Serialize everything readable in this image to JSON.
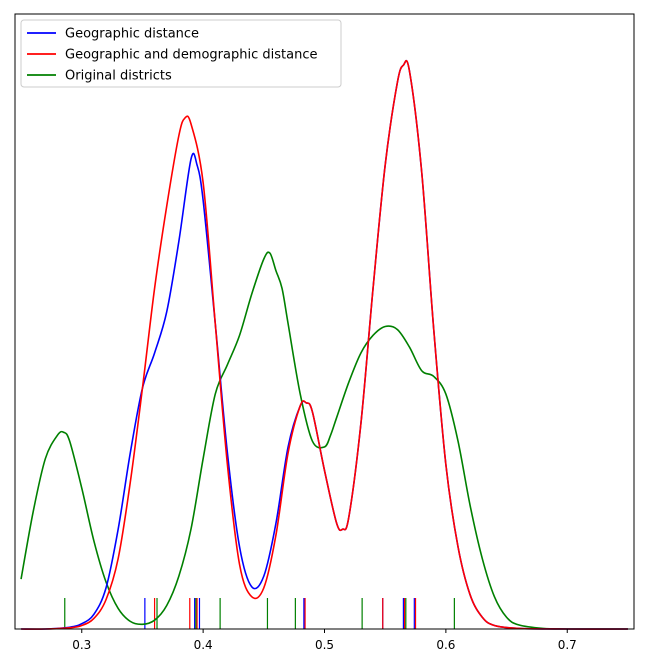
{
  "chart_data": {
    "type": "line",
    "title": "",
    "xlabel": "",
    "ylabel": "",
    "xlim": [
      0.245,
      0.755
    ],
    "ylim": [
      0,
      1.0
    ],
    "grid": false,
    "legend_position": "top-left",
    "x_ticks": [
      0.3,
      0.4,
      0.5,
      0.6,
      0.7
    ],
    "x_tick_labels": [
      "0.3",
      "0.4",
      "0.5",
      "0.6",
      "0.7"
    ],
    "y_ticks_visible": false,
    "series": [
      {
        "name": "Geographic distance",
        "color": "#0000ff",
        "x": [
          0.25,
          0.27,
          0.29,
          0.3,
          0.31,
          0.32,
          0.33,
          0.34,
          0.35,
          0.36,
          0.37,
          0.38,
          0.39,
          0.395,
          0.4,
          0.41,
          0.42,
          0.43,
          0.44,
          0.45,
          0.46,
          0.47,
          0.48,
          0.485,
          0.49,
          0.5,
          0.51,
          0.515,
          0.52,
          0.53,
          0.54,
          0.55,
          0.56,
          0.565,
          0.57,
          0.58,
          0.59,
          0.6,
          0.61,
          0.62,
          0.63,
          0.64,
          0.66,
          0.7,
          0.75
        ],
        "y": [
          0.0,
          0.0,
          0.003,
          0.009,
          0.025,
          0.07,
          0.17,
          0.3,
          0.41,
          0.47,
          0.54,
          0.66,
          0.8,
          0.79,
          0.73,
          0.52,
          0.3,
          0.14,
          0.072,
          0.09,
          0.18,
          0.31,
          0.38,
          0.385,
          0.37,
          0.27,
          0.18,
          0.17,
          0.19,
          0.35,
          0.58,
          0.79,
          0.93,
          0.96,
          0.95,
          0.78,
          0.51,
          0.28,
          0.14,
          0.058,
          0.02,
          0.006,
          0.001,
          0.0,
          0.0
        ]
      },
      {
        "name": "Geographic and demographic distance",
        "color": "#ff0000",
        "x": [
          0.25,
          0.27,
          0.29,
          0.3,
          0.31,
          0.32,
          0.33,
          0.34,
          0.35,
          0.36,
          0.37,
          0.38,
          0.385,
          0.39,
          0.4,
          0.41,
          0.42,
          0.43,
          0.44,
          0.45,
          0.46,
          0.47,
          0.48,
          0.485,
          0.49,
          0.5,
          0.51,
          0.515,
          0.52,
          0.53,
          0.54,
          0.55,
          0.56,
          0.565,
          0.57,
          0.58,
          0.59,
          0.6,
          0.61,
          0.62,
          0.63,
          0.64,
          0.66,
          0.7,
          0.75
        ],
        "y": [
          0.0,
          0.0,
          0.002,
          0.006,
          0.018,
          0.05,
          0.12,
          0.25,
          0.41,
          0.58,
          0.72,
          0.84,
          0.87,
          0.86,
          0.76,
          0.52,
          0.28,
          0.11,
          0.055,
          0.07,
          0.16,
          0.3,
          0.38,
          0.385,
          0.37,
          0.27,
          0.18,
          0.17,
          0.19,
          0.35,
          0.58,
          0.79,
          0.93,
          0.96,
          0.95,
          0.78,
          0.51,
          0.28,
          0.14,
          0.058,
          0.02,
          0.006,
          0.001,
          0.0,
          0.0
        ]
      },
      {
        "name": "Original districts",
        "color": "#008000",
        "x": [
          0.25,
          0.26,
          0.27,
          0.28,
          0.285,
          0.29,
          0.3,
          0.31,
          0.32,
          0.33,
          0.34,
          0.35,
          0.36,
          0.37,
          0.38,
          0.39,
          0.4,
          0.41,
          0.42,
          0.43,
          0.44,
          0.45,
          0.455,
          0.46,
          0.465,
          0.47,
          0.48,
          0.49,
          0.5,
          0.505,
          0.51,
          0.52,
          0.53,
          0.54,
          0.55,
          0.56,
          0.57,
          0.58,
          0.59,
          0.6,
          0.61,
          0.62,
          0.63,
          0.64,
          0.65,
          0.66,
          0.68,
          0.7,
          0.75
        ],
        "y": [
          0.085,
          0.2,
          0.29,
          0.33,
          0.335,
          0.32,
          0.24,
          0.15,
          0.08,
          0.035,
          0.013,
          0.008,
          0.015,
          0.04,
          0.09,
          0.17,
          0.29,
          0.4,
          0.45,
          0.5,
          0.57,
          0.63,
          0.64,
          0.61,
          0.58,
          0.52,
          0.4,
          0.32,
          0.31,
          0.33,
          0.36,
          0.42,
          0.47,
          0.5,
          0.515,
          0.51,
          0.48,
          0.44,
          0.43,
          0.4,
          0.32,
          0.21,
          0.12,
          0.055,
          0.02,
          0.007,
          0.001,
          0.0,
          0.0
        ]
      }
    ],
    "rug": [
      {
        "color": "#0000ff",
        "x": [
          0.352,
          0.393,
          0.397,
          0.483,
          0.548,
          0.565,
          0.574
        ]
      },
      {
        "color": "#ff0000",
        "x": [
          0.36,
          0.389,
          0.395,
          0.484,
          0.548,
          0.566,
          0.575
        ]
      },
      {
        "color": "#008000",
        "x": [
          0.286,
          0.362,
          0.394,
          0.414,
          0.453,
          0.476,
          0.531,
          0.567,
          0.607
        ]
      }
    ]
  }
}
